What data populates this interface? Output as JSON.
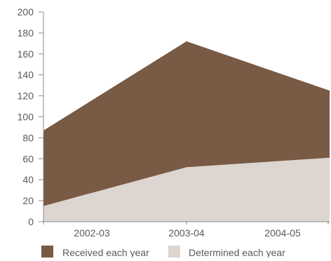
{
  "chart_data": {
    "type": "area",
    "stacked": false,
    "categories": [
      "2002-03",
      "2003-04",
      "2004-05"
    ],
    "ylim": [
      0,
      200
    ],
    "yticks": [
      0,
      20,
      40,
      60,
      80,
      100,
      120,
      140,
      160,
      180,
      200
    ],
    "grid": false,
    "legend_position": "bottom",
    "title": "",
    "xlabel": "",
    "ylabel": "",
    "series": [
      {
        "name": "Received each year",
        "color": "#785a45",
        "values": [
          87,
          172,
          125
        ]
      },
      {
        "name": "Determined each year",
        "color": "#ddd5cf",
        "values": [
          15,
          52,
          61
        ]
      }
    ]
  }
}
